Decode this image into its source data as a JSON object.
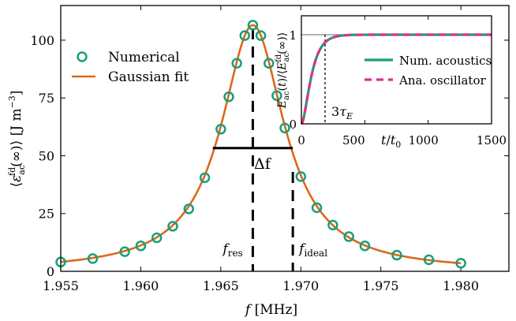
{
  "chart_data": [
    {
      "type": "scatter",
      "xlabel": "f [MHz]",
      "ylabel": "⟨ε_ac^fd(∞)⟩ [J m⁻³]",
      "xlim": [
        1.955,
        1.983
      ],
      "ylim": [
        0,
        115
      ],
      "x_ticks": [
        "1.955",
        "1.960",
        "1.965",
        "1.970",
        "1.975",
        "1.980"
      ],
      "y_ticks": [
        "0",
        "25",
        "50",
        "75",
        "100"
      ],
      "legend": {
        "position": "top-left",
        "entries": [
          "Numerical",
          "Gaussian fit"
        ]
      },
      "colors": {
        "numerical": "#1a9e7a",
        "fit": "#d96a1c",
        "markers": "#000000"
      },
      "series": [
        {
          "name": "Numerical",
          "kind": "scatter",
          "x": [
            1.955,
            1.957,
            1.959,
            1.96,
            1.961,
            1.962,
            1.963,
            1.964,
            1.965,
            1.9655,
            1.966,
            1.9665,
            1.967,
            1.9675,
            1.968,
            1.9685,
            1.969,
            1.97,
            1.971,
            1.972,
            1.973,
            1.974,
            1.976,
            1.978,
            1.98
          ],
          "y": [
            4,
            5.5,
            8.5,
            11,
            14.5,
            19.5,
            27,
            40.5,
            61.5,
            75.5,
            90,
            102,
            106.5,
            102,
            90,
            76,
            62,
            41,
            27.5,
            20,
            15,
            11,
            7,
            5,
            3.5
          ]
        },
        {
          "name": "Gaussian fit",
          "kind": "line",
          "center": 1.967,
          "peak": 106.5,
          "half_width": 0.0024
        }
      ],
      "annotations": {
        "f_res": {
          "label_main": "f",
          "label_sub": "res",
          "x": 1.967
        },
        "f_ideal": {
          "label_main": "f",
          "label_sub": "ideal",
          "x": 1.9695
        },
        "width": {
          "label": "Δf",
          "x1": 1.9645,
          "x2": 1.9695,
          "y": 53.3
        }
      }
    },
    {
      "type": "line",
      "inset": true,
      "xlabel": "t/t₀",
      "ylabel": "E_ac(t)/⟨E_ac^fd(∞)⟩",
      "xlim": [
        0,
        1500
      ],
      "ylim": [
        0,
        1.1
      ],
      "x_ticks": [
        "0",
        "500",
        "1000",
        "1500"
      ],
      "y_ticks": [
        "0",
        "1"
      ],
      "legend": {
        "position": "center-right",
        "entries": [
          "Num. acoustics",
          "Ana. oscillator"
        ]
      },
      "colors": {
        "acoustics": "#1a9e7a",
        "oscillator": "#e0308a"
      },
      "series": [
        {
          "name": "Num. acoustics",
          "kind": "line",
          "tau": 60
        },
        {
          "name": "Ana. oscillator",
          "kind": "dashed",
          "tau": 60
        }
      ],
      "annotation": {
        "label": "3τ_E",
        "x": 180
      }
    }
  ]
}
